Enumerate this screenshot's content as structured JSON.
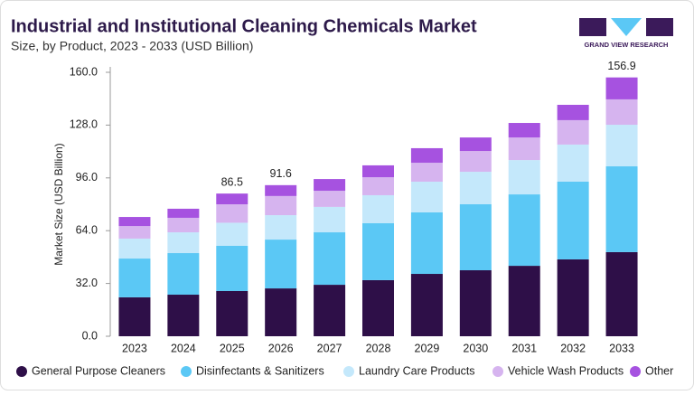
{
  "chart_data": {
    "type": "stacked_bar",
    "title": "Industrial and Institutional Cleaning Chemicals Market",
    "subtitle": "Size, by Product, 2023 - 2033 (USD Billion)",
    "y_label": "Market Size (USD Billion)",
    "logo_text": "GRAND VIEW RESEARCH",
    "categories": [
      "2023",
      "2024",
      "2025",
      "2026",
      "2027",
      "2028",
      "2029",
      "2030",
      "2031",
      "2032",
      "2033"
    ],
    "series": [
      {
        "name": "General Purpose Cleaners",
        "color": "#2e0f48",
        "values": [
          23.6,
          25.2,
          27.4,
          29.0,
          31.2,
          34.0,
          37.8,
          40.0,
          42.7,
          46.6,
          51.0
        ]
      },
      {
        "name": "Disinfectants & Sanitizers",
        "color": "#5bc8f5",
        "values": [
          23.5,
          25.2,
          27.4,
          29.6,
          31.8,
          34.5,
          37.3,
          40.0,
          43.3,
          47.1,
          52.0
        ]
      },
      {
        "name": "Laundry Care Products",
        "color": "#c4e8fb",
        "values": [
          12.1,
          12.6,
          14.0,
          14.8,
          15.4,
          17.0,
          18.6,
          19.7,
          20.8,
          22.5,
          25.2
        ]
      },
      {
        "name": "Vehicle Wash Products",
        "color": "#d6b4ef",
        "values": [
          7.6,
          8.8,
          11.2,
          11.6,
          9.8,
          10.9,
          11.5,
          12.6,
          13.7,
          14.8,
          15.4
        ]
      },
      {
        "name": "Other",
        "color": "#a652e0",
        "values": [
          5.5,
          5.5,
          6.5,
          6.6,
          7.1,
          7.2,
          8.8,
          8.2,
          8.8,
          9.3,
          13.3
        ]
      }
    ],
    "totals": [
      null,
      null,
      86.5,
      91.6,
      null,
      null,
      null,
      null,
      null,
      null,
      156.9
    ],
    "ylim": [
      0,
      160
    ],
    "yticks": [
      {
        "value": 0,
        "label": "0.0"
      },
      {
        "value": 32,
        "label": "32.0"
      },
      {
        "value": 64,
        "label": "64.0"
      },
      {
        "value": 96,
        "label": "96.0"
      },
      {
        "value": 128,
        "label": "128.0"
      },
      {
        "value": 160,
        "label": "160.0"
      }
    ],
    "legend": "bottom"
  }
}
